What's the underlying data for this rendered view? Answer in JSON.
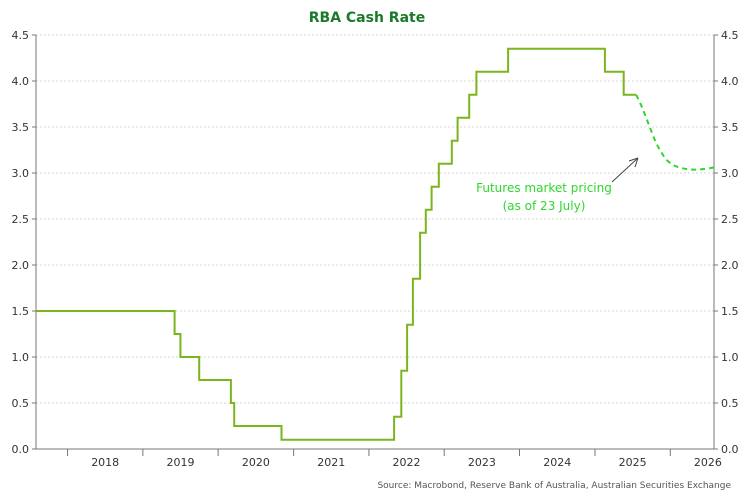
{
  "chart_data": {
    "type": "line",
    "title": "RBA Cash Rate",
    "source": "Source: Macrobond, Reserve Bank of Australia, Australian Securities Exchange",
    "ylim": [
      0,
      4.5
    ],
    "y_ticks": [
      "0.0",
      "0.5",
      "1.0",
      "1.5",
      "2.0",
      "2.5",
      "3.0",
      "3.5",
      "4.0",
      "4.5"
    ],
    "x_categories": [
      "2018",
      "2019",
      "2020",
      "2021",
      "2022",
      "2023",
      "2024",
      "2025",
      "2026"
    ],
    "grid": true,
    "colors": {
      "cash_rate": "#7ab51d",
      "futures": "#2fd62f",
      "title": "#1b7a2a",
      "annotation": "#2fd62f"
    },
    "annotation": {
      "lines": [
        "Futures market pricing",
        "(as of 23 July)"
      ]
    },
    "series": [
      {
        "id": "cash_rate",
        "style": "solid-step",
        "points": [
          [
            "2017-08-01",
            1.5
          ],
          [
            "2019-06-04",
            1.25
          ],
          [
            "2019-07-02",
            1.0
          ],
          [
            "2019-10-01",
            0.75
          ],
          [
            "2020-03-03",
            0.5
          ],
          [
            "2020-03-19",
            0.25
          ],
          [
            "2020-11-03",
            0.1
          ],
          [
            "2022-05-03",
            0.35
          ],
          [
            "2022-06-07",
            0.85
          ],
          [
            "2022-07-05",
            1.35
          ],
          [
            "2022-08-02",
            1.85
          ],
          [
            "2022-09-06",
            2.35
          ],
          [
            "2022-10-04",
            2.6
          ],
          [
            "2022-11-01",
            2.85
          ],
          [
            "2022-12-06",
            3.1
          ],
          [
            "2023-02-07",
            3.35
          ],
          [
            "2023-03-07",
            3.6
          ],
          [
            "2023-05-02",
            3.85
          ],
          [
            "2023-06-06",
            4.1
          ],
          [
            "2023-11-07",
            4.35
          ],
          [
            "2025-02-18",
            4.1
          ],
          [
            "2025-05-20",
            3.85
          ],
          [
            "2025-07-20",
            3.85
          ]
        ]
      },
      {
        "id": "futures",
        "style": "dashed",
        "points": [
          [
            "2025-07-20",
            3.85
          ],
          [
            "2025-08-20",
            3.7
          ],
          [
            "2025-09-20",
            3.52
          ],
          [
            "2025-10-20",
            3.35
          ],
          [
            "2025-11-20",
            3.22
          ],
          [
            "2025-12-20",
            3.13
          ],
          [
            "2026-02-01",
            3.07
          ],
          [
            "2026-04-01",
            3.04
          ],
          [
            "2026-06-01",
            3.04
          ],
          [
            "2026-08-01",
            3.06
          ]
        ]
      }
    ]
  }
}
